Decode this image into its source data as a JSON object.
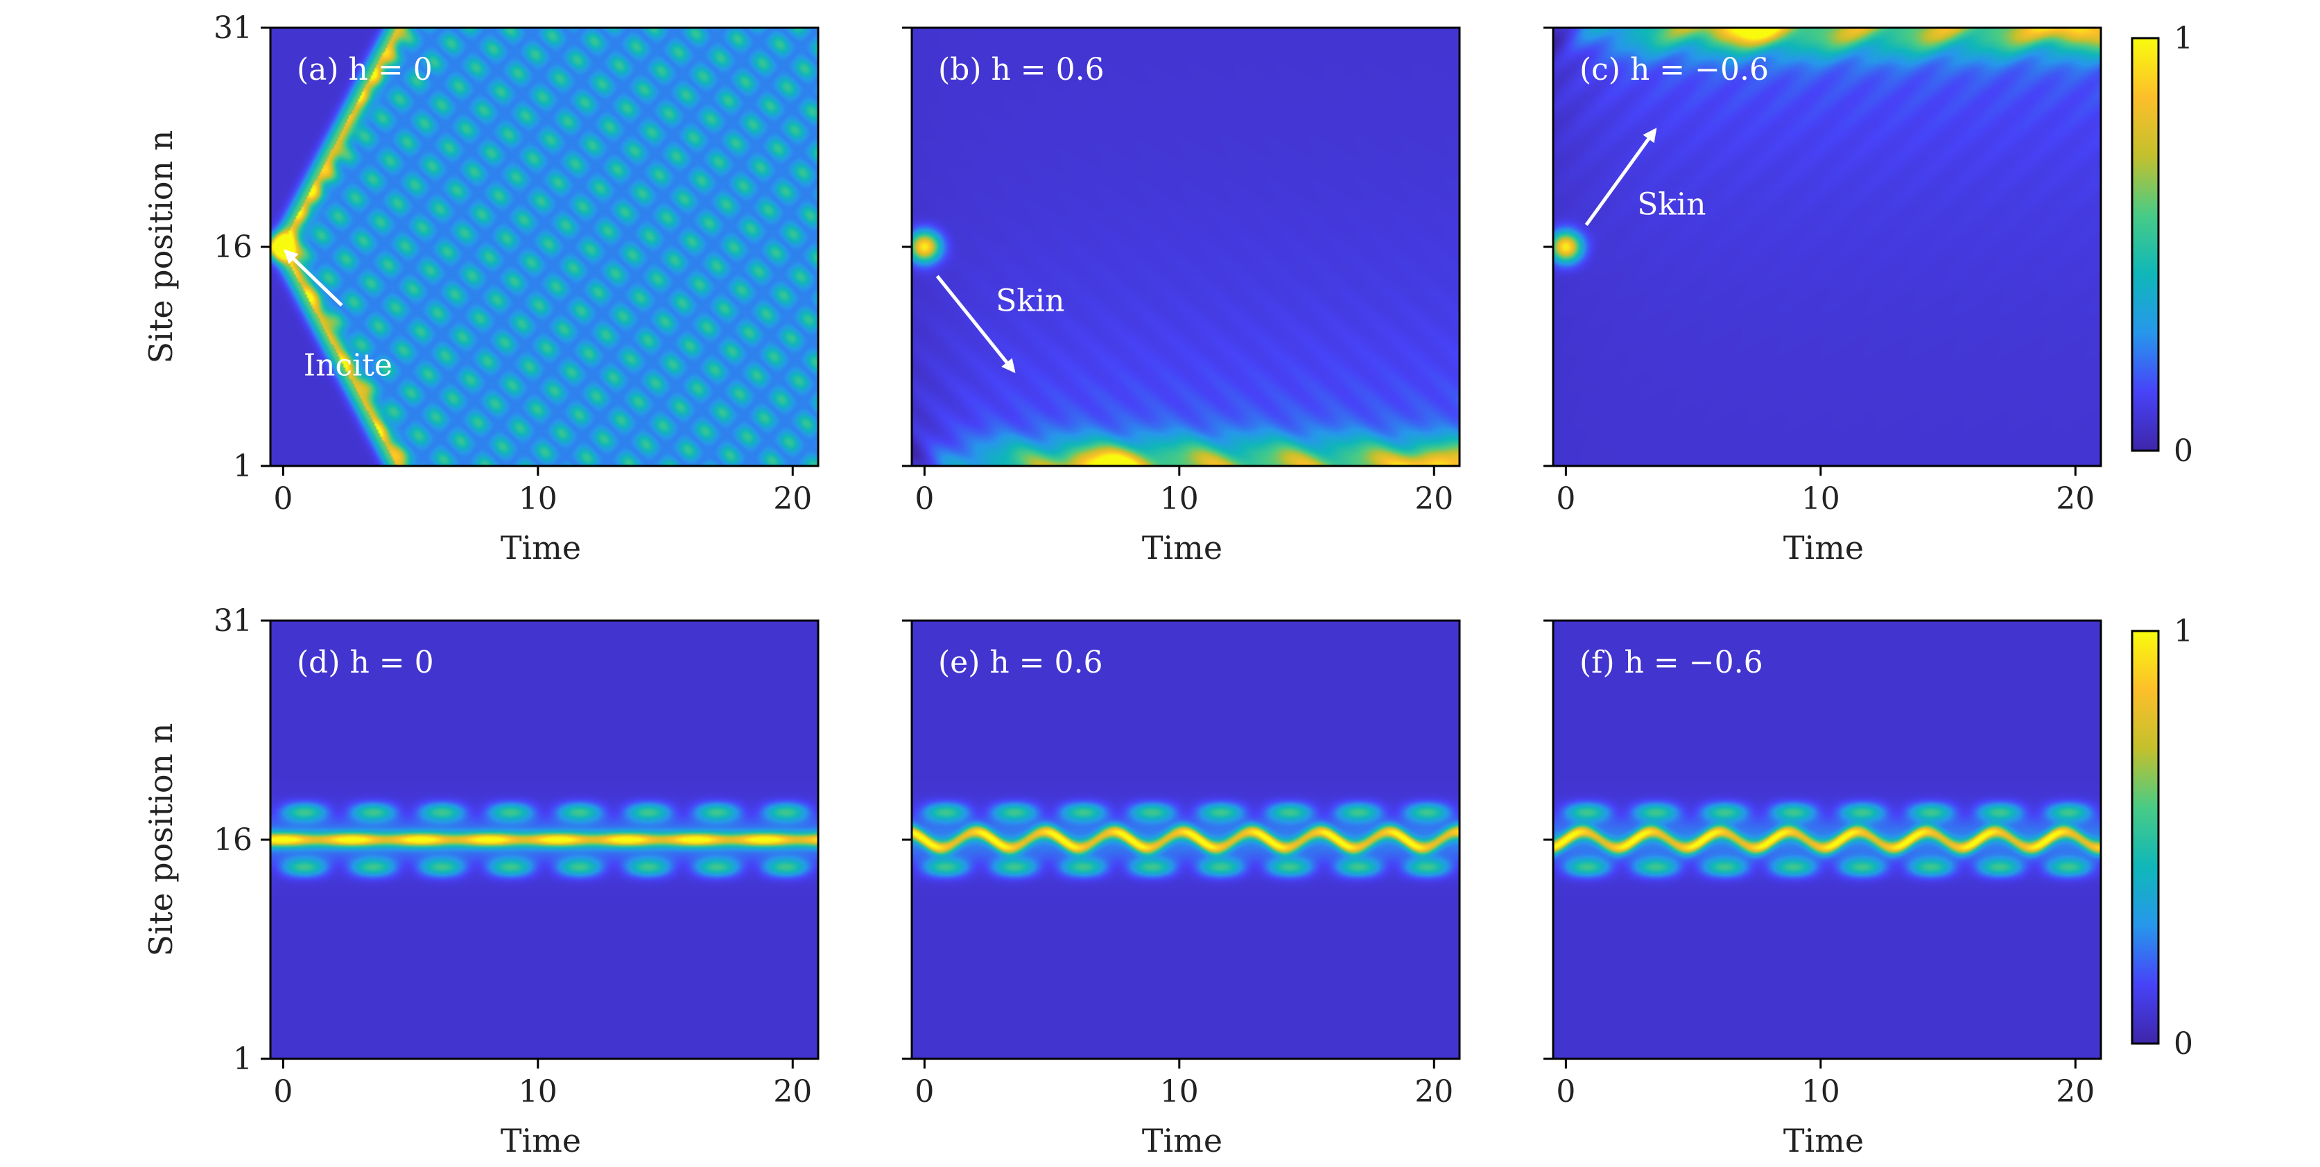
{
  "chart_data": [
    {
      "type": "heatmap",
      "panel_label": "(a) h = 0",
      "h": 0,
      "row": "top",
      "xlabel": "Time",
      "ylabel": "Site position n",
      "xlim": [
        -0.5,
        21
      ],
      "ylim": [
        1,
        31
      ],
      "xticks": [
        0,
        10,
        20
      ],
      "yticks": [
        1,
        16,
        31
      ],
      "pattern": "spreading",
      "annotation": {
        "text": "Incite",
        "arrow_from": [
          2.3,
          12
        ],
        "arrow_to": [
          0.1,
          15.7
        ]
      }
    },
    {
      "type": "heatmap",
      "panel_label": "(b) h = 0.6",
      "h": 0.6,
      "row": "top",
      "xlabel": "Time",
      "ylabel": "",
      "xlim": [
        -0.5,
        21
      ],
      "ylim": [
        1,
        31
      ],
      "xticks": [
        0,
        10,
        20
      ],
      "yticks": [
        1,
        16,
        31
      ],
      "pattern": "skin-bottom",
      "annotation": {
        "text": "Skin",
        "arrow_from": [
          0.5,
          14
        ],
        "arrow_to": [
          3.5,
          7.5
        ]
      }
    },
    {
      "type": "heatmap",
      "panel_label": "(c) h = −0.6",
      "h": -0.6,
      "row": "top",
      "xlabel": "Time",
      "ylabel": "",
      "xlim": [
        -0.5,
        21
      ],
      "ylim": [
        1,
        31
      ],
      "xticks": [
        0,
        10,
        20
      ],
      "yticks": [
        1,
        16,
        31
      ],
      "pattern": "skin-top",
      "annotation": {
        "text": "Skin",
        "arrow_from": [
          0.8,
          17.5
        ],
        "arrow_to": [
          3.5,
          24
        ]
      }
    },
    {
      "type": "heatmap",
      "panel_label": "(d) h = 0",
      "h": 0,
      "row": "bottom",
      "xlabel": "Time",
      "ylabel": "Site position n",
      "xlim": [
        -0.5,
        21
      ],
      "ylim": [
        1,
        31
      ],
      "xticks": [
        0,
        10,
        20
      ],
      "yticks": [
        1,
        16,
        31
      ],
      "pattern": "localized-straight"
    },
    {
      "type": "heatmap",
      "panel_label": "(e) h = 0.6",
      "h": 0.6,
      "row": "bottom",
      "xlabel": "Time",
      "ylabel": "",
      "xlim": [
        -0.5,
        21
      ],
      "ylim": [
        1,
        31
      ],
      "xticks": [
        0,
        10,
        20
      ],
      "yticks": [
        1,
        16,
        31
      ],
      "pattern": "localized-wave-down"
    },
    {
      "type": "heatmap",
      "panel_label": "(f) h = −0.6",
      "h": -0.6,
      "row": "bottom",
      "xlabel": "Time",
      "ylabel": "",
      "xlim": [
        -0.5,
        21
      ],
      "ylim": [
        1,
        31
      ],
      "xticks": [
        0,
        10,
        20
      ],
      "yticks": [
        1,
        16,
        31
      ],
      "pattern": "localized-wave-up"
    }
  ],
  "colorbars": [
    {
      "min_label": "0",
      "max_label": "1",
      "range": [
        0,
        1
      ],
      "colormap": [
        "#3e26a8",
        "#4743f8",
        "#2797eb",
        "#0fb7b9",
        "#48cb86",
        "#c3c02d",
        "#fcbf2a",
        "#f9fb0e"
      ]
    },
    {
      "min_label": "0",
      "max_label": "1",
      "range": [
        0,
        1
      ],
      "colormap": [
        "#3e26a8",
        "#4743f8",
        "#2797eb",
        "#0fb7b9",
        "#48cb86",
        "#c3c02d",
        "#fcbf2a",
        "#f9fb0e"
      ]
    }
  ]
}
